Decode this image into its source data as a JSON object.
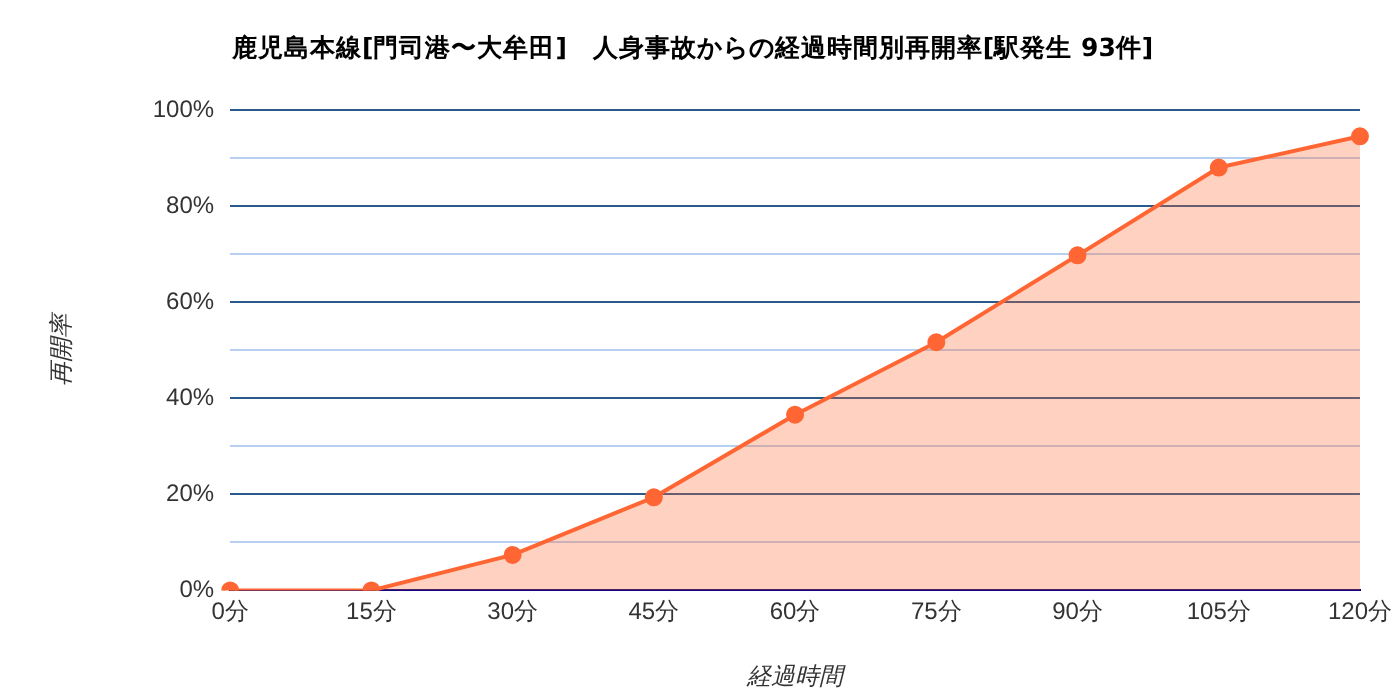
{
  "chart_data": {
    "type": "area",
    "title": "鹿児島本線[門司港〜大牟田]　人身事故からの経過時間別再開率[駅発生 93件]",
    "xlabel": "経過時間",
    "ylabel": "再開率",
    "categories": [
      "0分",
      "15分",
      "30分",
      "45分",
      "60分",
      "75分",
      "90分",
      "105分",
      "120分"
    ],
    "series": [
      {
        "color": "#ff6633",
        "values": [
          0,
          0,
          7.4,
          19.4,
          36.6,
          51.7,
          69.8,
          88.1,
          94.6
        ]
      }
    ],
    "ylim": [
      0,
      100
    ],
    "yticks": [
      {
        "value": 0,
        "label": "0%"
      },
      {
        "value": 10,
        "label": null
      },
      {
        "value": 20,
        "label": "20%"
      },
      {
        "value": 30,
        "label": null
      },
      {
        "value": 40,
        "label": "40%"
      },
      {
        "value": 50,
        "label": null
      },
      {
        "value": 60,
        "label": "60%"
      },
      {
        "value": 70,
        "label": null
      },
      {
        "value": 80,
        "label": "80%"
      },
      {
        "value": 90,
        "label": null
      },
      {
        "value": 100,
        "label": "100%"
      }
    ],
    "grid": "y",
    "legend": false,
    "marker": "circle"
  }
}
